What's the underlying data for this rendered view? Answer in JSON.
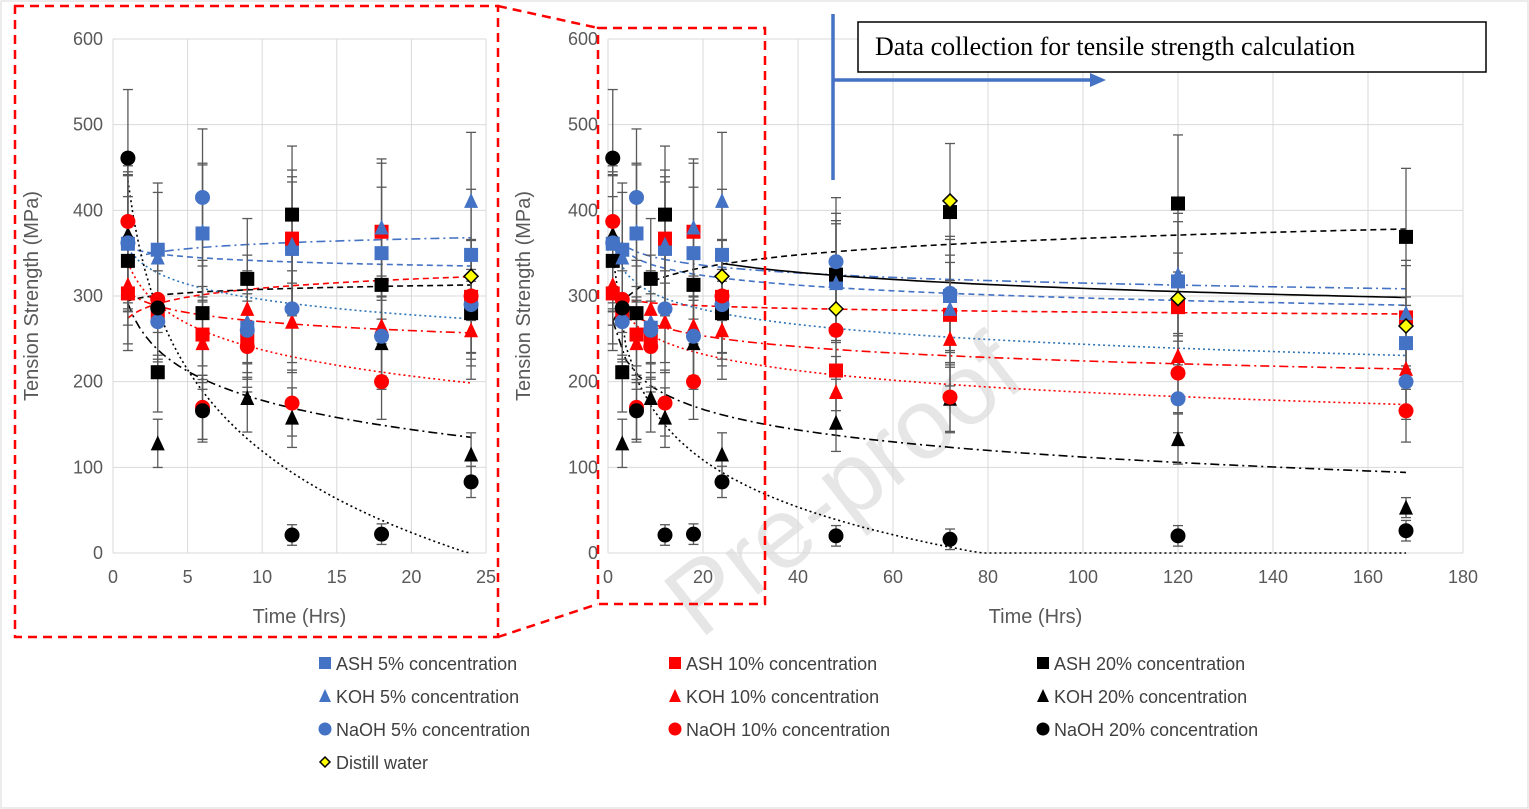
{
  "watermark": "Pre-proof",
  "annotation": {
    "text": "Data collection for tensile strength calculation"
  },
  "chart_data": [
    {
      "type": "scatter",
      "xlabel": "Time (Hrs)",
      "ylabel": "Tension Strength (MPa)",
      "xlim": [
        0,
        25
      ],
      "ylim": [
        0,
        600
      ],
      "xticks": [
        0,
        5,
        10,
        15,
        20,
        25
      ],
      "yticks": [
        0,
        100,
        200,
        300,
        400,
        500,
        600
      ],
      "grid": true,
      "series": [
        {
          "name": "ASH 5% concentration",
          "marker": "square",
          "color": "#4472c4",
          "x": [
            1,
            3,
            6,
            9,
            12,
            18,
            24
          ],
          "y": [
            361,
            354,
            373,
            263,
            355,
            350,
            348
          ]
        },
        {
          "name": "ASH 10% concentration",
          "marker": "square",
          "color": "#ff0000",
          "x": [
            1,
            3,
            6,
            9,
            12,
            18,
            24
          ],
          "y": [
            303,
            280,
            255,
            248,
            367,
            375,
            299
          ]
        },
        {
          "name": "ASH 20% concentration",
          "marker": "square",
          "color": "#000000",
          "x": [
            1,
            3,
            6,
            9,
            12,
            18,
            24
          ],
          "y": [
            341,
            211,
            280,
            320,
            395,
            313,
            280
          ]
        },
        {
          "name": "KOH 5% concentration",
          "marker": "triangle",
          "color": "#4472c4",
          "x": [
            1,
            3,
            6,
            9,
            12,
            18,
            24
          ],
          "y": [
            365,
            345,
            375,
            270,
            360,
            380,
            411
          ]
        },
        {
          "name": "KOH 10% concentration",
          "marker": "triangle",
          "color": "#ff0000",
          "x": [
            1,
            3,
            6,
            9,
            12,
            18,
            24
          ],
          "y": [
            313,
            290,
            245,
            285,
            270,
            265,
            260
          ]
        },
        {
          "name": "KOH 20% concentration",
          "marker": "triangle",
          "color": "#000000",
          "x": [
            1,
            3,
            6,
            9,
            12,
            18,
            24
          ],
          "y": [
            372,
            128,
            170,
            181,
            158,
            245,
            115
          ]
        },
        {
          "name": "NaOH 5% concentration",
          "marker": "circle",
          "color": "#4472c4",
          "x": [
            1,
            3,
            6,
            9,
            12,
            18,
            24
          ],
          "y": [
            362,
            270,
            415,
            260,
            285,
            253,
            290
          ]
        },
        {
          "name": "NaOH 10% concentration",
          "marker": "circle",
          "color": "#ff0000",
          "x": [
            1,
            3,
            6,
            9,
            12,
            18,
            24
          ],
          "y": [
            387,
            296,
            170,
            241,
            175,
            200,
            300
          ]
        },
        {
          "name": "NaOH 20% concentration",
          "marker": "circle",
          "color": "#000000",
          "x": [
            1,
            3,
            6,
            12,
            18,
            24
          ],
          "y": [
            461,
            286,
            166,
            21,
            22,
            83
          ]
        },
        {
          "name": "Distill water",
          "marker": "diamond",
          "color": "#ffff00",
          "x": [
            24
          ],
          "y": [
            323
          ]
        }
      ]
    },
    {
      "type": "scatter",
      "xlabel": "Time (Hrs)",
      "ylabel": "Tension Strength (MPa)",
      "xlim": [
        0,
        180
      ],
      "ylim": [
        0,
        600
      ],
      "xticks": [
        0,
        20,
        40,
        60,
        80,
        100,
        120,
        140,
        160,
        180
      ],
      "yticks": [
        0,
        100,
        200,
        300,
        400,
        500,
        600
      ],
      "grid": true,
      "series": [
        {
          "name": "ASH 5% concentration",
          "marker": "square",
          "color": "#4472c4",
          "x": [
            1,
            3,
            6,
            9,
            12,
            18,
            24,
            48,
            72,
            120,
            168
          ],
          "y": [
            361,
            354,
            373,
            263,
            355,
            350,
            348,
            318,
            300,
            317,
            245
          ]
        },
        {
          "name": "ASH 10% concentration",
          "marker": "square",
          "color": "#ff0000",
          "x": [
            1,
            3,
            6,
            9,
            12,
            18,
            24,
            48,
            72,
            120,
            168
          ],
          "y": [
            303,
            280,
            255,
            248,
            367,
            375,
            299,
            213,
            278,
            287,
            275
          ]
        },
        {
          "name": "ASH 20% concentration",
          "marker": "square",
          "color": "#000000",
          "x": [
            1,
            3,
            6,
            9,
            12,
            18,
            24,
            48,
            72,
            120,
            168
          ],
          "y": [
            341,
            211,
            280,
            320,
            395,
            313,
            280,
            325,
            398,
            408,
            369
          ]
        },
        {
          "name": "KOH 5% concentration",
          "marker": "triangle",
          "color": "#4472c4",
          "x": [
            1,
            3,
            6,
            9,
            12,
            18,
            24,
            48,
            72,
            120,
            168
          ],
          "y": [
            365,
            345,
            375,
            270,
            360,
            380,
            411,
            315,
            285,
            325,
            280
          ]
        },
        {
          "name": "KOH 10% concentration",
          "marker": "triangle",
          "color": "#ff0000",
          "x": [
            1,
            3,
            6,
            9,
            12,
            18,
            24,
            48,
            72,
            120,
            168
          ],
          "y": [
            313,
            290,
            245,
            285,
            270,
            265,
            260,
            188,
            250,
            230,
            215
          ]
        },
        {
          "name": "KOH 20% concentration",
          "marker": "triangle",
          "color": "#000000",
          "x": [
            1,
            3,
            6,
            9,
            12,
            18,
            24,
            48,
            72,
            120,
            168
          ],
          "y": [
            372,
            128,
            170,
            181,
            158,
            245,
            115,
            152,
            180,
            133,
            53
          ]
        },
        {
          "name": "NaOH 5% concentration",
          "marker": "circle",
          "color": "#4472c4",
          "x": [
            1,
            3,
            6,
            9,
            12,
            18,
            24,
            48,
            72,
            120,
            168
          ],
          "y": [
            362,
            270,
            415,
            260,
            285,
            253,
            290,
            340,
            303,
            180,
            200
          ]
        },
        {
          "name": "NaOH 10% concentration",
          "marker": "circle",
          "color": "#ff0000",
          "x": [
            1,
            3,
            6,
            9,
            12,
            18,
            24,
            48,
            72,
            120,
            168
          ],
          "y": [
            387,
            296,
            170,
            241,
            175,
            200,
            300,
            260,
            182,
            210,
            166
          ]
        },
        {
          "name": "NaOH 20% concentration",
          "marker": "circle",
          "color": "#000000",
          "x": [
            1,
            3,
            6,
            12,
            18,
            24,
            48,
            72,
            120,
            168
          ],
          "y": [
            461,
            286,
            166,
            21,
            22,
            83,
            20,
            16,
            20,
            26
          ]
        },
        {
          "name": "Distill water",
          "marker": "diamond",
          "color": "#ffff00",
          "x": [
            24,
            48,
            72,
            120,
            168
          ],
          "y": [
            323,
            285,
            411,
            297,
            265
          ]
        }
      ]
    }
  ],
  "legend": [
    {
      "label": "ASH 5% concentration",
      "marker": "square",
      "color": "#4472c4"
    },
    {
      "label": "ASH 10% concentration",
      "marker": "square",
      "color": "#ff0000"
    },
    {
      "label": "ASH 20% concentration",
      "marker": "square",
      "color": "#000000"
    },
    {
      "label": "KOH 5% concentration",
      "marker": "triangle",
      "color": "#4472c4"
    },
    {
      "label": "KOH 10% concentration",
      "marker": "triangle",
      "color": "#ff0000"
    },
    {
      "label": "KOH 20% concentration",
      "marker": "triangle",
      "color": "#000000"
    },
    {
      "label": "NaOH 5% concentration",
      "marker": "circle",
      "color": "#4472c4"
    },
    {
      "label": "NaOH 10% concentration",
      "marker": "circle",
      "color": "#ff0000"
    },
    {
      "label": "NaOH 20% concentration",
      "marker": "circle",
      "color": "#000000"
    },
    {
      "label": "Distill water",
      "marker": "diamond",
      "color": "#ffff00"
    }
  ]
}
